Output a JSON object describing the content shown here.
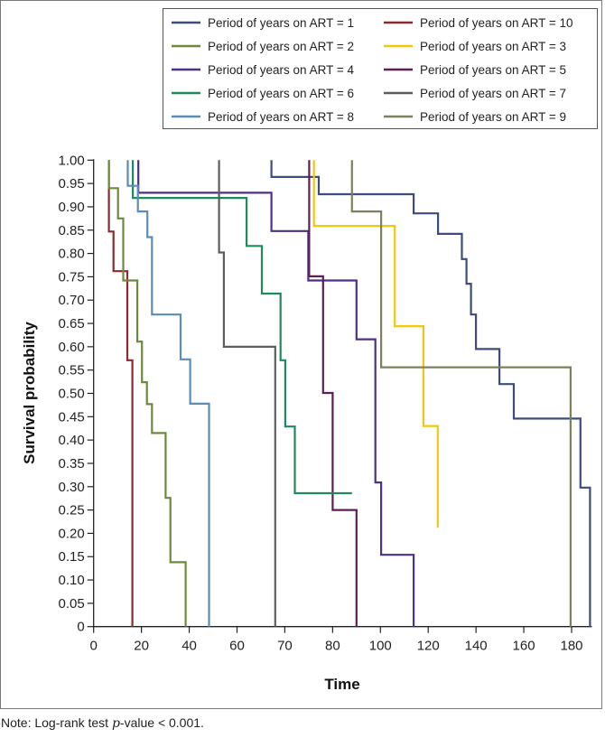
{
  "chart_data": {
    "type": "line",
    "subtype": "kaplan-meier step",
    "xlabel": "Time",
    "ylabel": "Survival probability",
    "x_ticks": [
      0,
      20,
      40,
      60,
      70,
      80,
      100,
      120,
      140,
      160,
      180
    ],
    "x_max": 188.5,
    "y_ticks": [
      "0",
      "0.05",
      "0.10",
      "0.15",
      "0.20",
      "0.25",
      "0.30",
      "0.35",
      "0.40",
      "0.45",
      "0.50",
      "0.55",
      "0.60",
      "0.65",
      "0.70",
      "0.75",
      "0.80",
      "0.85",
      "0.90",
      "0.95",
      "1.00"
    ],
    "ylim": [
      0,
      1
    ],
    "legend_position": "top-right",
    "series": [
      {
        "name": "Period of years on ART = 1",
        "color": "#3d4c7d",
        "start": 67.2,
        "steps": [
          [
            67.2,
            0.964
          ],
          [
            77.1,
            0.927
          ],
          [
            113.9,
            0.886
          ],
          [
            124.1,
            0.842
          ],
          [
            134.1,
            0.788
          ],
          [
            136.0,
            0.735
          ],
          [
            137.9,
            0.669
          ],
          [
            140.0,
            0.595
          ],
          [
            149.8,
            0.52
          ],
          [
            155.8,
            0.446
          ],
          [
            183.7,
            0.298
          ],
          [
            187.7,
            0
          ]
        ],
        "end": null
      },
      {
        "name": "Period of years on ART = 10",
        "color": "#8b2a2e",
        "start": 6.4,
        "steps": [
          [
            6.4,
            0.847
          ],
          [
            8.3,
            0.762
          ],
          [
            14.1,
            0.571
          ],
          [
            16.2,
            0
          ]
        ],
        "end": null
      },
      {
        "name": "Period of years on ART = 2",
        "color": "#6b8a3e",
        "start": 6.4,
        "steps": [
          [
            6.4,
            0.94
          ],
          [
            10.2,
            0.875
          ],
          [
            12.4,
            0.742
          ],
          [
            18.3,
            0.611
          ],
          [
            20.2,
            0.524
          ],
          [
            22.3,
            0.477
          ],
          [
            24.4,
            0.415
          ],
          [
            30.1,
            0.276
          ],
          [
            32.1,
            0.138
          ],
          [
            38.5,
            0
          ]
        ],
        "end": null
      },
      {
        "name": "Period of years on ART = 3",
        "color": "#f2c80f",
        "start": 76.1,
        "steps": [
          [
            76.1,
            0.859
          ],
          [
            106.0,
            0.644
          ],
          [
            118.0,
            0.43
          ],
          [
            124.0,
            0.212
          ]
        ],
        "end": null
      },
      {
        "name": "Period of years on ART = 4",
        "color": "#4e3183",
        "start": 18.7,
        "steps": [
          [
            18.7,
            0.93
          ],
          [
            67.2,
            0.848
          ],
          [
            74.9,
            0.742
          ],
          [
            90.0,
            0.616
          ],
          [
            97.9,
            0.309
          ],
          [
            100.3,
            0.154
          ],
          [
            113.9,
            0
          ]
        ],
        "end": null
      },
      {
        "name": "Period of years on ART = 5",
        "color": "#5e1e55",
        "start": 75.1,
        "steps": [
          [
            75.1,
            0.751
          ],
          [
            78.0,
            0.501
          ],
          [
            80.0,
            0.25
          ],
          [
            90.0,
            0
          ]
        ],
        "end": null
      },
      {
        "name": "Period of years on ART = 6",
        "color": "#1f8a5e",
        "start": 16.4,
        "steps": [
          [
            16.4,
            0.919
          ],
          [
            62.0,
            0.816
          ],
          [
            65.2,
            0.714
          ],
          [
            69.1,
            0.571
          ],
          [
            70.1,
            0.429
          ],
          [
            72.1,
            0.286
          ]
        ],
        "end": 88.1
      },
      {
        "name": "Period of years on ART = 7",
        "color": "#5d5d5d",
        "start": 52.5,
        "steps": [
          [
            52.5,
            0.802
          ],
          [
            54.5,
            0.6
          ],
          [
            68.0,
            0
          ]
        ],
        "end": null
      },
      {
        "name": "Period of years on ART = 8",
        "color": "#5b8cb8",
        "start": 14.3,
        "steps": [
          [
            14.3,
            0.945
          ],
          [
            18.5,
            0.89
          ],
          [
            22.5,
            0.835
          ],
          [
            24.4,
            0.669
          ],
          [
            36.4,
            0.573
          ],
          [
            40.4,
            0.478
          ],
          [
            48.3,
            0
          ]
        ],
        "end": null
      },
      {
        "name": "Period of years on ART = 9",
        "color": "#7c815c",
        "start": 88.1,
        "steps": [
          [
            88.1,
            0.89
          ],
          [
            100.3,
            0.556
          ],
          [
            179.6,
            0
          ]
        ],
        "end": null
      }
    ]
  },
  "note": {
    "prefix": "Note: Log-rank test ",
    "p": "p",
    "suffix": "-value < 0.001."
  }
}
